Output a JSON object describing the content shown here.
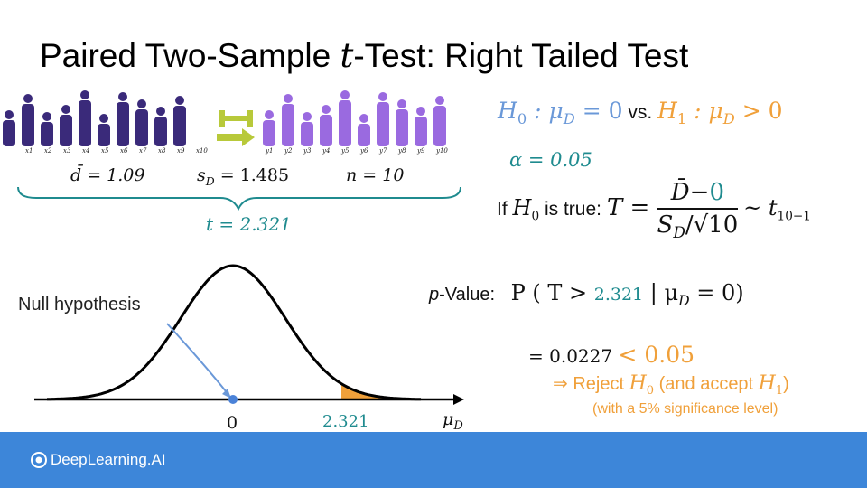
{
  "title": "Paired Two-Sample t-Test: Right Tailed Test",
  "title_parts": {
    "before": "Paired Two-Sample ",
    "t": "t",
    "after": "-Test: Right Tailed Test"
  },
  "people_labels_before": [
    "x1",
    "x2",
    "x3",
    "x4",
    "x5",
    "x6",
    "x7",
    "x8",
    "x9",
    "x10"
  ],
  "people_labels_after": [
    "y1",
    "y2",
    "y3",
    "y4",
    "y5",
    "y6",
    "y7",
    "y8",
    "y9",
    "y10"
  ],
  "stats": {
    "dbar": "d̄ = 1.09",
    "sd": "s",
    "sd_sub": "D",
    "sd_val": " = 1.485",
    "n": "n = 10"
  },
  "t_stat": "t = 2.321",
  "hypothesis": {
    "h0": "H",
    "h0_sub": "0",
    "h0_rest": " : μ",
    "h0_mu_sub": "D",
    "h0_eq": " = 0",
    "vs": " vs. ",
    "h1": "H",
    "h1_sub": "1",
    "h1_rest": " : μ",
    "h1_mu_sub": "D",
    "h1_eq": " > 0"
  },
  "alpha": "α = 0.05",
  "t_distribution": {
    "prefix": "If ",
    "h0": "H",
    "h0_sub": "0",
    "mid": " is true: ",
    "T": "T = ",
    "num_d": "D̄",
    "num_minus": "−",
    "num_zero": "0",
    "den_s": "S",
    "den_sub": "D",
    "den_root": "/√10",
    "tilde": " ~ t",
    "df": "10−1"
  },
  "p_value": {
    "label_p": "p",
    "label_rest": "-Value:",
    "expr_start": "P ( T > ",
    "value": "2.321",
    "expr_end": " | μ",
    "mu_sub": "D",
    "expr_tail": " = 0)"
  },
  "p_result": {
    "eq": "= 0.0227",
    "lt": "< 0.05"
  },
  "reject": {
    "arrow": "⇒",
    "text1": " Reject ",
    "h0": "H",
    "h0_sub": "0",
    "text2": " (and accept ",
    "h1": "H",
    "h1_sub": "1",
    "text3": ")"
  },
  "significance_note": "(with a 5% significance level)",
  "plot": {
    "null_label": "Null hypothesis",
    "zero_tick": "0",
    "t_tick": "2.321",
    "axis_label": "μ",
    "axis_label_sub": "D"
  },
  "footer": {
    "brand": "DeepLearning.AI"
  },
  "colors": {
    "blue": "#6a98d8",
    "orange": "#f0a03a",
    "teal": "#1f8b8f",
    "footer": "#3d86d9",
    "people_before": "#3a2a7a",
    "people_after": "#9a6ae0"
  }
}
